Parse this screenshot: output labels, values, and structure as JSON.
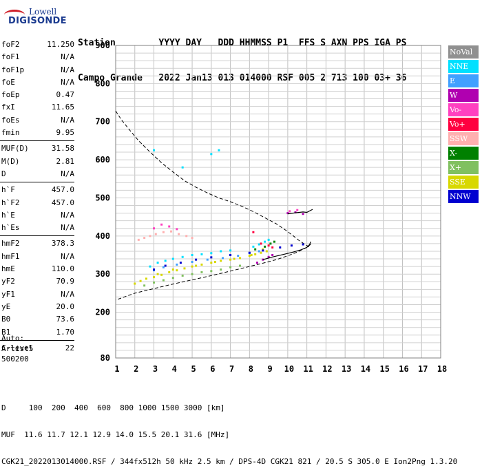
{
  "logo": {
    "line1": "Lowell",
    "line2": "DIGISONDE"
  },
  "header": {
    "row1": "Station        YYYY DAY   DDD HHMMSS P1  FFS S AXN PPS IGA PS",
    "row2": "Campo Grande   2022 Jan13 013 014000 RSF 005 2 713 100 03+ 36"
  },
  "params": {
    "group1": [
      {
        "name": "foF2",
        "value": "11.250"
      },
      {
        "name": "foF1",
        "value": "N/A"
      },
      {
        "name": "foF1p",
        "value": "N/A"
      },
      {
        "name": "foE",
        "value": "N/A"
      },
      {
        "name": "foEp",
        "value": "0.47"
      },
      {
        "name": "fxI",
        "value": "11.65"
      },
      {
        "name": "foEs",
        "value": "N/A"
      },
      {
        "name": "fmin",
        "value": "9.95"
      }
    ],
    "group2": [
      {
        "name": "MUF(D)",
        "value": "31.58"
      },
      {
        "name": "M(D)",
        "value": "2.81"
      },
      {
        "name": "D",
        "value": "N/A"
      }
    ],
    "group3": [
      {
        "name": "h`F",
        "value": "457.0"
      },
      {
        "name": "h`F2",
        "value": "457.0"
      },
      {
        "name": "h`E",
        "value": "N/A"
      },
      {
        "name": "h`Es",
        "value": "N/A"
      }
    ],
    "group4": [
      {
        "name": "hmF2",
        "value": "378.3"
      },
      {
        "name": "hmF1",
        "value": "N/A"
      },
      {
        "name": "hmE",
        "value": "110.0"
      },
      {
        "name": "yF2",
        "value": "70.9"
      },
      {
        "name": "yF1",
        "value": "N/A"
      },
      {
        "name": "yE",
        "value": "20.0"
      },
      {
        "name": "B0",
        "value": "73.6"
      },
      {
        "name": "B1",
        "value": "1.70"
      }
    ],
    "group5": [
      {
        "name": "C-level",
        "value": "22"
      }
    ]
  },
  "auto": {
    "line1": "Auto:",
    "line2": "Artist5",
    "line3": "500200"
  },
  "bottom": {
    "row1": "D     100  200  400  600  800 1000 1500 3000 [km]",
    "row2": "MUF  11.6 11.7 12.1 12.9 14.0 15.5 20.1 31.6 [MHz]",
    "row3": "CGK21_2022013014000.RSF / 344fx512h 50 kHz 2.5 km / DPS-4D CGK21 821 / 20.5 S 305.0 E Ion2Png 1.3.20"
  },
  "legend": [
    {
      "label": "NoVal",
      "color": "#909090"
    },
    {
      "label": "NNE",
      "color": "#00e0ff"
    },
    {
      "label": "E",
      "color": "#40a0ff"
    },
    {
      "label": "W",
      "color": "#b000b0"
    },
    {
      "label": "Vo-",
      "color": "#ff40c0"
    },
    {
      "label": "Vo+",
      "color": "#ff0040"
    },
    {
      "label": "SSW",
      "color": "#ffb0b0"
    },
    {
      "label": "X-",
      "color": "#008000"
    },
    {
      "label": "X+",
      "color": "#80c060"
    },
    {
      "label": "SSE",
      "color": "#d8d800"
    },
    {
      "label": "NNW",
      "color": "#0000d0"
    }
  ],
  "chart_data": {
    "type": "scatter",
    "xlim": [
      1,
      18
    ],
    "ylim": [
      80,
      900
    ],
    "x_ticks": [
      "1",
      "2",
      "3",
      "4",
      "5",
      "6",
      "7",
      "8",
      "9",
      "10",
      "11",
      "12",
      "13",
      "14",
      "15",
      "16",
      "17",
      "18"
    ],
    "y_ticks": [
      "80",
      "200",
      "300",
      "400",
      "500",
      "600",
      "700",
      "800",
      "900"
    ],
    "grid": true,
    "series": [
      {
        "name": "SSE",
        "color": "#d8d800",
        "points": [
          [
            2.0,
            275
          ],
          [
            2.3,
            282
          ],
          [
            2.6,
            288
          ],
          [
            3.0,
            292
          ],
          [
            3.4,
            298
          ],
          [
            3.8,
            305
          ],
          [
            4.2,
            310
          ],
          [
            4.6,
            315
          ],
          [
            5.0,
            320
          ],
          [
            5.5,
            325
          ],
          [
            6.0,
            330
          ],
          [
            6.5,
            335
          ],
          [
            7.0,
            338
          ],
          [
            7.5,
            342
          ],
          [
            8.0,
            348
          ],
          [
            8.3,
            352
          ],
          [
            8.6,
            356
          ],
          [
            8.9,
            360
          ],
          [
            3.2,
            300
          ],
          [
            4.0,
            312
          ],
          [
            5.2,
            322
          ],
          [
            6.2,
            332
          ],
          [
            7.2,
            340
          ],
          [
            8.1,
            350
          ],
          [
            8.7,
            365
          ]
        ]
      },
      {
        "name": "NNE",
        "color": "#00e0ff",
        "points": [
          [
            2.8,
            320
          ],
          [
            3.2,
            330
          ],
          [
            3.6,
            335
          ],
          [
            4.0,
            340
          ],
          [
            4.5,
            345
          ],
          [
            5.0,
            350
          ],
          [
            5.5,
            352
          ],
          [
            6.0,
            355
          ],
          [
            6.5,
            360
          ],
          [
            7.0,
            362
          ],
          [
            8.2,
            372
          ],
          [
            8.5,
            378
          ],
          [
            8.8,
            385
          ],
          [
            9.0,
            390
          ],
          [
            3.0,
            625
          ],
          [
            4.5,
            580
          ],
          [
            6.0,
            615
          ],
          [
            6.4,
            625
          ]
        ]
      },
      {
        "name": "E",
        "color": "#40a0ff",
        "points": [
          [
            3.0,
            310
          ],
          [
            3.5,
            318
          ],
          [
            4.2,
            325
          ],
          [
            5.0,
            332
          ],
          [
            5.8,
            338
          ],
          [
            6.6,
            342
          ],
          [
            7.4,
            348
          ],
          [
            8.0,
            355
          ],
          [
            8.5,
            360
          ]
        ]
      },
      {
        "name": "W",
        "color": "#b000b0",
        "points": [
          [
            8.4,
            330
          ],
          [
            8.7,
            338
          ],
          [
            9.0,
            345
          ],
          [
            9.2,
            350
          ],
          [
            10.0,
            460
          ],
          [
            10.4,
            462
          ],
          [
            10.8,
            458
          ]
        ]
      },
      {
        "name": "Vo-",
        "color": "#ff40c0",
        "points": [
          [
            3.0,
            420
          ],
          [
            3.4,
            430
          ],
          [
            3.8,
            425
          ],
          [
            4.2,
            418
          ],
          [
            10.1,
            465
          ],
          [
            10.5,
            468
          ]
        ]
      },
      {
        "name": "Vo+",
        "color": "#ff0040",
        "points": [
          [
            8.2,
            410
          ],
          [
            8.6,
            380
          ],
          [
            9.0,
            375
          ],
          [
            9.2,
            370
          ]
        ]
      },
      {
        "name": "SSW",
        "color": "#ffb0b0",
        "points": [
          [
            2.2,
            390
          ],
          [
            2.5,
            395
          ],
          [
            2.8,
            400
          ],
          [
            3.1,
            405
          ],
          [
            3.5,
            410
          ],
          [
            3.9,
            412
          ],
          [
            4.3,
            405
          ],
          [
            4.7,
            400
          ],
          [
            5.0,
            395
          ]
        ]
      },
      {
        "name": "X-",
        "color": "#008000",
        "points": [
          [
            8.3,
            365
          ],
          [
            8.8,
            372
          ],
          [
            9.1,
            380
          ],
          [
            9.3,
            385
          ]
        ]
      },
      {
        "name": "X+",
        "color": "#80c060",
        "points": [
          [
            2.5,
            270
          ],
          [
            3.0,
            278
          ],
          [
            3.5,
            284
          ],
          [
            4.0,
            290
          ],
          [
            4.5,
            296
          ],
          [
            5.0,
            300
          ],
          [
            5.5,
            305
          ],
          [
            6.0,
            308
          ],
          [
            6.5,
            312
          ],
          [
            7.0,
            318
          ],
          [
            7.5,
            322
          ]
        ]
      },
      {
        "name": "NNW",
        "color": "#0000d0",
        "points": [
          [
            3.0,
            312
          ],
          [
            3.6,
            322
          ],
          [
            4.4,
            330
          ],
          [
            5.2,
            338
          ],
          [
            6.0,
            344
          ],
          [
            7.0,
            350
          ],
          [
            8.0,
            356
          ],
          [
            8.7,
            362
          ],
          [
            9.6,
            370
          ],
          [
            10.2,
            375
          ],
          [
            10.8,
            378
          ]
        ]
      }
    ],
    "profile_line": {
      "style": "dashed",
      "points": [
        [
          1.0,
          728
        ],
        [
          1.3,
          705
        ],
        [
          1.7,
          680
        ],
        [
          2.2,
          650
        ],
        [
          2.8,
          620
        ],
        [
          3.4,
          592
        ],
        [
          4.0,
          568
        ],
        [
          4.6,
          545
        ],
        [
          5.2,
          528
        ],
        [
          5.8,
          513
        ],
        [
          6.4,
          500
        ],
        [
          7.0,
          490
        ],
        [
          7.6,
          478
        ],
        [
          8.2,
          464
        ],
        [
          8.8,
          448
        ],
        [
          9.4,
          432
        ],
        [
          9.9,
          415
        ],
        [
          10.3,
          400
        ],
        [
          10.6,
          388
        ],
        [
          10.9,
          378
        ],
        [
          11.1,
          372
        ],
        [
          11.2,
          378
        ],
        [
          11.0,
          370
        ],
        [
          10.5,
          358
        ],
        [
          10.0,
          348
        ],
        [
          9.4,
          338
        ],
        [
          8.8,
          330
        ],
        [
          8.0,
          320
        ],
        [
          7.0,
          308
        ],
        [
          6.0,
          296
        ],
        [
          5.0,
          285
        ],
        [
          4.0,
          274
        ],
        [
          3.0,
          262
        ],
        [
          2.0,
          250
        ],
        [
          1.0,
          232
        ]
      ]
    },
    "trace_black": {
      "style": "solid",
      "points": [
        [
          8.7,
          338
        ],
        [
          9.2,
          345
        ],
        [
          9.8,
          352
        ],
        [
          10.3,
          358
        ],
        [
          10.7,
          364
        ],
        [
          11.0,
          370
        ],
        [
          11.15,
          378
        ],
        [
          11.2,
          385
        ]
      ]
    },
    "trace_upper": {
      "style": "solid",
      "points": [
        [
          10.0,
          458
        ],
        [
          10.4,
          461
        ],
        [
          10.8,
          463
        ],
        [
          11.0,
          462
        ],
        [
          11.3,
          470
        ]
      ]
    }
  }
}
